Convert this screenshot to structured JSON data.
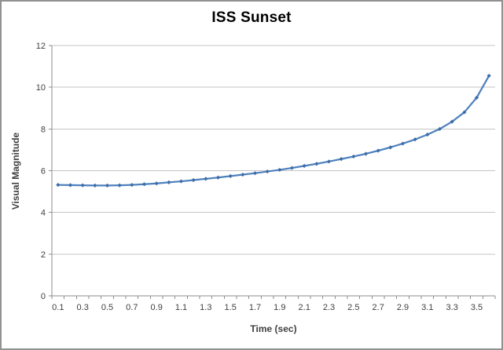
{
  "chart_data": {
    "type": "line",
    "title": "ISS Sunset",
    "xlabel": "Time (sec)",
    "ylabel": "Visual Magnitude",
    "x": [
      0.1,
      0.2,
      0.3,
      0.4,
      0.5,
      0.6,
      0.7,
      0.8,
      0.9,
      1.0,
      1.1,
      1.2,
      1.3,
      1.4,
      1.5,
      1.6,
      1.7,
      1.8,
      1.9,
      2.0,
      2.1,
      2.2,
      2.3,
      2.4,
      2.5,
      2.6,
      2.7,
      2.8,
      2.9,
      3.0,
      3.1,
      3.2,
      3.3,
      3.4,
      3.5,
      3.6
    ],
    "series": [
      {
        "name": "Visual Magnitude",
        "values": [
          5.32,
          5.31,
          5.3,
          5.29,
          5.29,
          5.3,
          5.32,
          5.35,
          5.39,
          5.44,
          5.49,
          5.55,
          5.61,
          5.67,
          5.74,
          5.81,
          5.88,
          5.96,
          6.04,
          6.13,
          6.23,
          6.33,
          6.44,
          6.56,
          6.68,
          6.81,
          6.96,
          7.12,
          7.3,
          7.5,
          7.73,
          8.0,
          8.35,
          8.8,
          9.5,
          10.55
        ]
      }
    ],
    "ylim": [
      0,
      12
    ],
    "y_ticks": [
      0,
      2,
      4,
      6,
      8,
      10,
      12
    ],
    "x_tick_labels": [
      "0.1",
      "0.3",
      "0.5",
      "0.7",
      "0.9",
      "1.1",
      "1.3",
      "1.5",
      "1.7",
      "1.9",
      "2.1",
      "2.3",
      "2.5",
      "2.7",
      "2.9",
      "3.1",
      "3.3",
      "3.5"
    ],
    "x_minor_tick_step": 0.1,
    "grid": "horizontal",
    "legend": "none",
    "marker": "diamond",
    "colors": {
      "line": "#4f81bd",
      "marker": "#3c6da8",
      "grid": "#c4c4c4",
      "axis": "#8e8e8e",
      "tick_text": "#404040",
      "title_text": "#000000",
      "frame_border": "#919191",
      "background": "#ffffff"
    }
  }
}
